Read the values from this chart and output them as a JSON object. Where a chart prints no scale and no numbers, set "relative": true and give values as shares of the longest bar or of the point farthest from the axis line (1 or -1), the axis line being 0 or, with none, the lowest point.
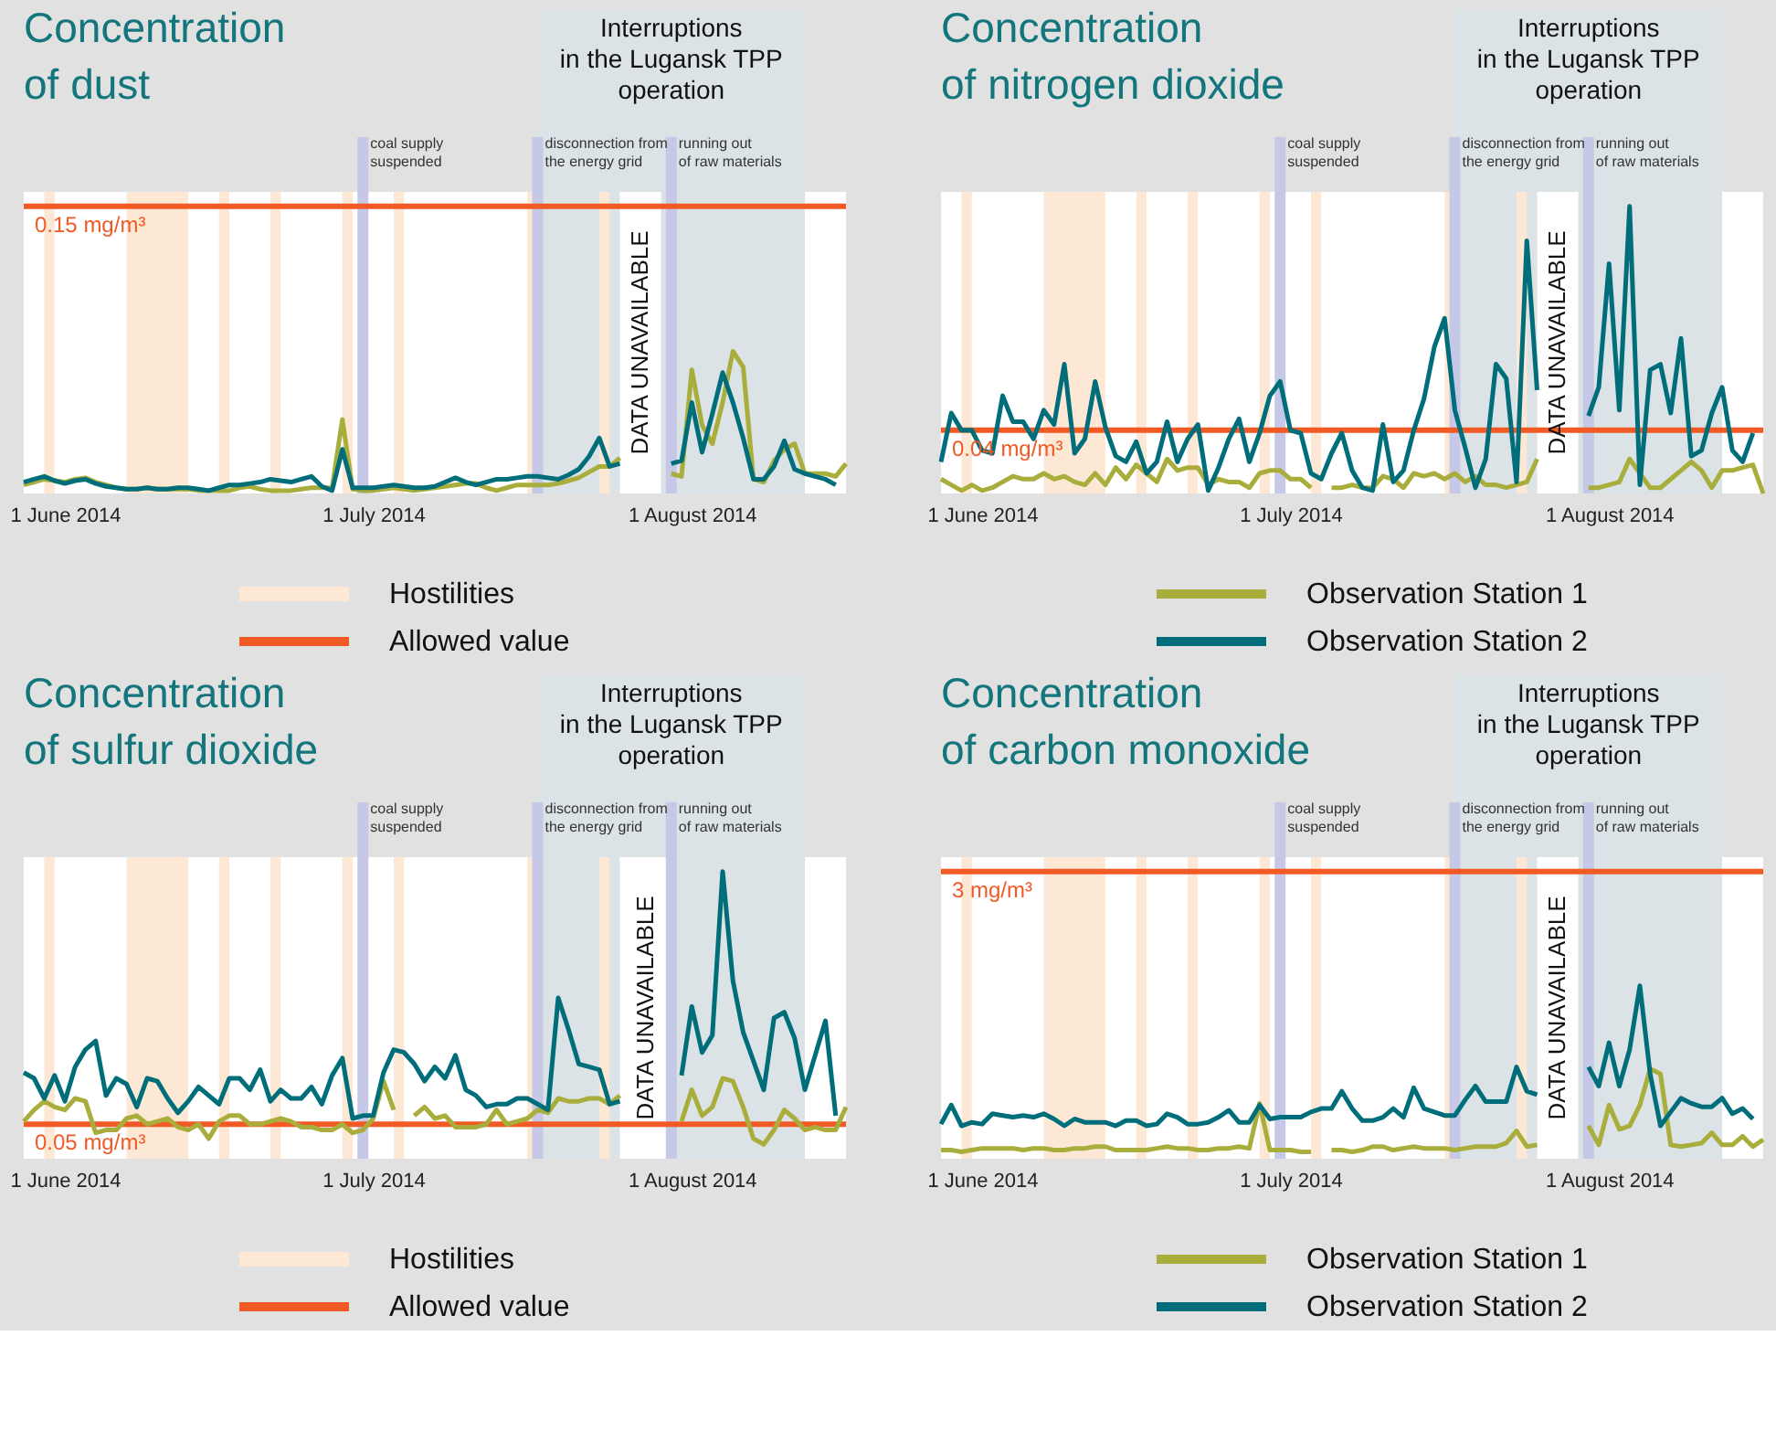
{
  "chart_data": [
    {
      "type": "line",
      "title": "Concentration\nof dust",
      "relative": true,
      "tick_labels": "x",
      "x": [
        "2014-05-28",
        "2014-05-29",
        "2014-05-30",
        "2014-05-31",
        "2014-06-01",
        "2014-06-02",
        "2014-06-03",
        "2014-06-04",
        "2014-06-05",
        "2014-06-06",
        "2014-06-07",
        "2014-06-08",
        "2014-06-09",
        "2014-06-10",
        "2014-06-11",
        "2014-06-12",
        "2014-06-13",
        "2014-06-14",
        "2014-06-15",
        "2014-06-16",
        "2014-06-17",
        "2014-06-18",
        "2014-06-19",
        "2014-06-20",
        "2014-06-21",
        "2014-06-22",
        "2014-06-23",
        "2014-06-24",
        "2014-06-25",
        "2014-06-26",
        "2014-06-27",
        "2014-06-28",
        "2014-06-29",
        "2014-06-30",
        "2014-07-01",
        "2014-07-02",
        "2014-07-03",
        "2014-07-04",
        "2014-07-05",
        "2014-07-06",
        "2014-07-07",
        "2014-07-08",
        "2014-07-09",
        "2014-07-10",
        "2014-07-11",
        "2014-07-12",
        "2014-07-13",
        "2014-07-14",
        "2014-07-15",
        "2014-07-16",
        "2014-07-17",
        "2014-07-18",
        "2014-07-19",
        "2014-07-20",
        "2014-07-21",
        "2014-07-22",
        "2014-07-23",
        "2014-07-24",
        "2014-07-25",
        "2014-07-26",
        "2014-07-27",
        "2014-07-28",
        "2014-07-29",
        "2014-07-30",
        "2014-07-31",
        "2014-08-01",
        "2014-08-02",
        "2014-08-03",
        "2014-08-04",
        "2014-08-05",
        "2014-08-06",
        "2014-08-07",
        "2014-08-08",
        "2014-08-09",
        "2014-08-10",
        "2014-08-11",
        "2014-08-12",
        "2014-08-13",
        "2014-08-14",
        "2014-08-15",
        "2014-08-16"
      ],
      "xlim": [
        "2014-05-28",
        "2014-08-16"
      ],
      "xticks": [
        {
          "value": "2014-06-01",
          "label": "1 June 2014"
        },
        {
          "value": "2014-07-01",
          "label": "1 July 2014"
        },
        {
          "value": "2014-08-01",
          "label": "1 August 2014"
        }
      ],
      "series": [
        {
          "color": "#a9ad3b",
          "values": [
            0.06,
            0.08,
            0.1,
            0.09,
            0.08,
            0.1,
            0.11,
            0.08,
            0.06,
            0.04,
            0.03,
            0.03,
            0.04,
            0.03,
            0.03,
            0.03,
            0.03,
            0.02,
            0.02,
            0.02,
            0.02,
            0.04,
            0.05,
            0.03,
            0.02,
            0.02,
            0.02,
            0.03,
            0.04,
            0.04,
            0.04,
            0.52,
            0.03,
            0.02,
            0.02,
            0.03,
            0.04,
            0.03,
            0.02,
            0.03,
            0.04,
            0.05,
            0.06,
            0.07,
            0.07,
            0.04,
            0.02,
            0.04,
            0.06,
            0.06,
            0.06,
            0.06,
            0.07,
            0.09,
            0.11,
            0.15,
            0.19,
            0.19,
            0.25,
            null,
            null,
            null,
            null,
            0.14,
            0.12,
            0.87,
            0.48,
            0.35,
            0.64,
            1,
            0.89,
            0.1,
            0.08,
            0.23,
            0.31,
            0.35,
            0.14,
            0.14,
            0.14,
            0.12,
            0.21
          ]
        },
        {
          "color": "#006e7a",
          "values": [
            0.08,
            0.1,
            0.12,
            0.09,
            0.07,
            0.09,
            0.1,
            0.07,
            0.05,
            0.04,
            0.03,
            0.03,
            0.04,
            0.03,
            0.03,
            0.04,
            0.04,
            0.03,
            0.02,
            0.04,
            0.06,
            0.06,
            0.07,
            0.08,
            0.1,
            0.09,
            0.08,
            0.1,
            0.12,
            0.05,
            0.02,
            0.31,
            0.04,
            0.04,
            0.04,
            0.05,
            0.06,
            0.05,
            0.04,
            0.04,
            0.05,
            0.08,
            0.11,
            0.08,
            0.06,
            0.08,
            0.1,
            0.1,
            0.11,
            0.12,
            0.12,
            0.11,
            0.1,
            0.13,
            0.17,
            0.26,
            0.39,
            0.19,
            0.21,
            null,
            null,
            null,
            null,
            0.21,
            0.23,
            0.64,
            0.29,
            0.56,
            0.85,
            0.64,
            0.39,
            0.1,
            0.1,
            0.19,
            0.37,
            0.17,
            0.14,
            0.12,
            0.1,
            0.06,
            null
          ]
        }
      ],
      "bands": [
        {
          "axis": "x",
          "from": "2014-07-17",
          "to": "2014-08-12",
          "label": "Interruptions\nin the Lugansk TPP\noperation",
          "color": "#dbe3e6"
        },
        {
          "axis": "x",
          "from": "2014-05-30",
          "to": "2014-05-31",
          "color": "#fde8d6"
        },
        {
          "axis": "x",
          "from": "2014-06-07",
          "to": "2014-06-13",
          "color": "#fde8d6"
        },
        {
          "axis": "x",
          "from": "2014-06-16",
          "to": "2014-06-17",
          "color": "#fde8d6"
        },
        {
          "axis": "x",
          "from": "2014-06-21",
          "to": "2014-06-22",
          "color": "#fde8d6"
        },
        {
          "axis": "x",
          "from": "2014-06-28",
          "to": "2014-06-29",
          "color": "#fde8d6"
        },
        {
          "axis": "x",
          "from": "2014-07-03",
          "to": "2014-07-04",
          "color": "#fde8d6"
        },
        {
          "axis": "x",
          "from": "2014-07-16",
          "to": "2014-07-17",
          "color": "#fde8d6"
        },
        {
          "axis": "x",
          "from": "2014-07-23",
          "to": "2014-07-24",
          "color": "#fde8d6"
        },
        {
          "axis": "x",
          "from": "2014-07-25",
          "to": "2014-07-29",
          "label": "DATA UNAVAILABLE",
          "color": "#ffffff"
        }
      ],
      "ref_lines": [
        {
          "axis": "x",
          "value": "2014-06-30",
          "label": "coal supply\nsuspended",
          "color": "#c5c8e6"
        },
        {
          "axis": "x",
          "value": "2014-07-17",
          "label": "disconnection from\nthe energy grid",
          "color": "#c5c8e6"
        },
        {
          "axis": "x",
          "value": "2014-07-30",
          "label": "running out\nof raw materials",
          "color": "#c5c8e6"
        },
        {
          "axis": "y",
          "value": 2.02,
          "label": "0.15 mg/m³",
          "color": "#f15a24"
        }
      ],
      "annotations": [
        "Hostilities",
        "Allowed value"
      ]
    },
    {
      "type": "line",
      "title": "Concentration\nof nitrogen dioxide",
      "relative": true,
      "tick_labels": "x",
      "legend": "bottom",
      "x": [
        "2014-05-28",
        "2014-05-29",
        "2014-05-30",
        "2014-05-31",
        "2014-06-01",
        "2014-06-02",
        "2014-06-03",
        "2014-06-04",
        "2014-06-05",
        "2014-06-06",
        "2014-06-07",
        "2014-06-08",
        "2014-06-09",
        "2014-06-10",
        "2014-06-11",
        "2014-06-12",
        "2014-06-13",
        "2014-06-14",
        "2014-06-15",
        "2014-06-16",
        "2014-06-17",
        "2014-06-18",
        "2014-06-19",
        "2014-06-20",
        "2014-06-21",
        "2014-06-22",
        "2014-06-23",
        "2014-06-24",
        "2014-06-25",
        "2014-06-26",
        "2014-06-27",
        "2014-06-28",
        "2014-06-29",
        "2014-06-30",
        "2014-07-01",
        "2014-07-02",
        "2014-07-03",
        "2014-07-04",
        "2014-07-05",
        "2014-07-06",
        "2014-07-07",
        "2014-07-08",
        "2014-07-09",
        "2014-07-10",
        "2014-07-11",
        "2014-07-12",
        "2014-07-13",
        "2014-07-14",
        "2014-07-15",
        "2014-07-16",
        "2014-07-17",
        "2014-07-18",
        "2014-07-19",
        "2014-07-20",
        "2014-07-21",
        "2014-07-22",
        "2014-07-23",
        "2014-07-24",
        "2014-07-25",
        "2014-07-26",
        "2014-07-27",
        "2014-07-28",
        "2014-07-29",
        "2014-07-30",
        "2014-07-31",
        "2014-08-01",
        "2014-08-02",
        "2014-08-03",
        "2014-08-04",
        "2014-08-05",
        "2014-08-06",
        "2014-08-07",
        "2014-08-08",
        "2014-08-09",
        "2014-08-10",
        "2014-08-11",
        "2014-08-12",
        "2014-08-13",
        "2014-08-14",
        "2014-08-15",
        "2014-08-16"
      ],
      "xlim": [
        "2014-05-28",
        "2014-08-16"
      ],
      "xticks": [
        {
          "value": "2014-06-01",
          "label": "1 June 2014"
        },
        {
          "value": "2014-07-01",
          "label": "1 July 2014"
        },
        {
          "value": "2014-08-01",
          "label": "1 August 2014"
        }
      ],
      "series": [
        {
          "name": "Observation Station 1",
          "color": "#a9ad3b",
          "values": [
            0.05,
            0.03,
            0.01,
            0.03,
            0.01,
            0.02,
            0.04,
            0.06,
            0.05,
            0.05,
            0.07,
            0.05,
            0.06,
            0.04,
            0.03,
            0.07,
            0.03,
            0.09,
            0.05,
            0.1,
            0.07,
            0.04,
            0.12,
            0.08,
            0.09,
            0.09,
            0.03,
            0.05,
            0.04,
            0.04,
            0.02,
            0.07,
            0.08,
            0.08,
            0.05,
            0.05,
            0.02,
            null,
            0.02,
            0.02,
            0.03,
            0.02,
            0.02,
            0.06,
            0.05,
            0.02,
            0.07,
            0.06,
            0.07,
            0.05,
            0.07,
            0.04,
            0.06,
            0.03,
            0.03,
            0.02,
            0.03,
            0.04,
            0.12,
            null,
            null,
            null,
            null,
            0.02,
            0.02,
            0.03,
            0.04,
            0.12,
            0.07,
            0.02,
            0.02,
            0.05,
            0.08,
            0.11,
            0.08,
            0.02,
            0.08,
            0.08,
            0.09,
            0.1,
            0
          ]
        },
        {
          "name": "Observation Station 2",
          "color": "#006e7a",
          "values": [
            0.11,
            0.28,
            0.22,
            0.22,
            0.15,
            0.14,
            0.34,
            0.25,
            0.25,
            0.19,
            0.29,
            0.24,
            0.45,
            0.14,
            0.19,
            0.39,
            0.23,
            0.13,
            0.11,
            0.18,
            0.07,
            0.11,
            0.25,
            0.11,
            0.19,
            0.24,
            0.01,
            0.09,
            0.19,
            0.26,
            0.11,
            0.21,
            0.34,
            0.39,
            0.22,
            0.21,
            0.07,
            0.05,
            0.14,
            0.21,
            0.08,
            0.02,
            0.01,
            0.24,
            0.04,
            0.08,
            0.22,
            0.33,
            0.51,
            0.61,
            0.29,
            0.16,
            0.02,
            0.12,
            0.45,
            0.4,
            0.04,
            0.88,
            0.36,
            null,
            null,
            null,
            null,
            0.27,
            0.37,
            0.8,
            0.29,
            1,
            0.03,
            0.43,
            0.45,
            0.28,
            0.54,
            0.13,
            0.15,
            0.28,
            0.37,
            0.15,
            0.11,
            0.21,
            null
          ]
        }
      ],
      "bands": [
        {
          "axis": "x",
          "from": "2014-07-17",
          "to": "2014-08-12",
          "label": "Interruptions\nin the Lugansk TPP\noperation",
          "color": "#dbe3e6"
        },
        {
          "axis": "x",
          "from": "2014-05-30",
          "to": "2014-05-31",
          "color": "#fde8d6"
        },
        {
          "axis": "x",
          "from": "2014-06-07",
          "to": "2014-06-13",
          "color": "#fde8d6"
        },
        {
          "axis": "x",
          "from": "2014-06-16",
          "to": "2014-06-17",
          "color": "#fde8d6"
        },
        {
          "axis": "x",
          "from": "2014-06-21",
          "to": "2014-06-22",
          "color": "#fde8d6"
        },
        {
          "axis": "x",
          "from": "2014-06-28",
          "to": "2014-06-29",
          "color": "#fde8d6"
        },
        {
          "axis": "x",
          "from": "2014-07-03",
          "to": "2014-07-04",
          "color": "#fde8d6"
        },
        {
          "axis": "x",
          "from": "2014-07-16",
          "to": "2014-07-17",
          "color": "#fde8d6"
        },
        {
          "axis": "x",
          "from": "2014-07-23",
          "to": "2014-07-24",
          "color": "#fde8d6"
        },
        {
          "axis": "x",
          "from": "2014-07-25",
          "to": "2014-07-29",
          "label": "DATA UNAVAILABLE",
          "color": "#ffffff"
        }
      ],
      "ref_lines": [
        {
          "axis": "x",
          "value": "2014-06-30",
          "label": "coal supply\nsuspended",
          "color": "#c5c8e6"
        },
        {
          "axis": "x",
          "value": "2014-07-17",
          "label": "disconnection from\nthe energy grid",
          "color": "#c5c8e6"
        },
        {
          "axis": "x",
          "value": "2014-07-30",
          "label": "running out\nof raw materials",
          "color": "#c5c8e6"
        },
        {
          "axis": "y",
          "value": 0.22,
          "label": "0.04 mg/m³",
          "color": "#f15a24"
        }
      ]
    },
    {
      "type": "line",
      "title": "Concentration\nof sulfur dioxide",
      "relative": true,
      "tick_labels": "x",
      "x": [
        "2014-05-28",
        "2014-05-29",
        "2014-05-30",
        "2014-05-31",
        "2014-06-01",
        "2014-06-02",
        "2014-06-03",
        "2014-06-04",
        "2014-06-05",
        "2014-06-06",
        "2014-06-07",
        "2014-06-08",
        "2014-06-09",
        "2014-06-10",
        "2014-06-11",
        "2014-06-12",
        "2014-06-13",
        "2014-06-14",
        "2014-06-15",
        "2014-06-16",
        "2014-06-17",
        "2014-06-18",
        "2014-06-19",
        "2014-06-20",
        "2014-06-21",
        "2014-06-22",
        "2014-06-23",
        "2014-06-24",
        "2014-06-25",
        "2014-06-26",
        "2014-06-27",
        "2014-06-28",
        "2014-06-29",
        "2014-06-30",
        "2014-07-01",
        "2014-07-02",
        "2014-07-03",
        "2014-07-04",
        "2014-07-05",
        "2014-07-06",
        "2014-07-07",
        "2014-07-08",
        "2014-07-09",
        "2014-07-10",
        "2014-07-11",
        "2014-07-12",
        "2014-07-13",
        "2014-07-14",
        "2014-07-15",
        "2014-07-16",
        "2014-07-17",
        "2014-07-18",
        "2014-07-19",
        "2014-07-20",
        "2014-07-21",
        "2014-07-22",
        "2014-07-23",
        "2014-07-24",
        "2014-07-25",
        "2014-07-26",
        "2014-07-27",
        "2014-07-28",
        "2014-07-29",
        "2014-07-30",
        "2014-07-31",
        "2014-08-01",
        "2014-08-02",
        "2014-08-03",
        "2014-08-04",
        "2014-08-05",
        "2014-08-06",
        "2014-08-07",
        "2014-08-08",
        "2014-08-09",
        "2014-08-10",
        "2014-08-11",
        "2014-08-12",
        "2014-08-13",
        "2014-08-14",
        "2014-08-15",
        "2014-08-16"
      ],
      "xlim": [
        "2014-05-28",
        "2014-08-16"
      ],
      "xticks": [
        {
          "value": "2014-06-01",
          "label": "1 June 2014"
        },
        {
          "value": "2014-07-01",
          "label": "1 July 2014"
        },
        {
          "value": "2014-08-01",
          "label": "1 August 2014"
        }
      ],
      "series": [
        {
          "color": "#a9ad3b",
          "values": [
            0.13,
            0.17,
            0.2,
            0.18,
            0.17,
            0.21,
            0.2,
            0.09,
            0.1,
            0.1,
            0.14,
            0.15,
            0.12,
            0.13,
            0.14,
            0.11,
            0.1,
            0.12,
            0.07,
            0.13,
            0.15,
            0.15,
            0.12,
            0.12,
            0.13,
            0.14,
            0.13,
            0.11,
            0.11,
            0.1,
            0.1,
            0.12,
            0.09,
            0.1,
            0.14,
            0.27,
            0.17,
            null,
            0.15,
            0.18,
            0.14,
            0.15,
            0.11,
            0.11,
            0.11,
            0.12,
            0.17,
            0.12,
            0.13,
            0.14,
            0.17,
            0.16,
            0.21,
            0.2,
            0.2,
            0.21,
            0.21,
            0.19,
            0.22,
            null,
            null,
            null,
            null,
            null,
            0.13,
            0.24,
            0.15,
            0.18,
            0.28,
            0.27,
            0.18,
            0.07,
            0.05,
            0.1,
            0.17,
            0.14,
            0.1,
            0.11,
            0.1,
            0.1,
            0.18
          ]
        },
        {
          "color": "#006e7a",
          "values": [
            0.3,
            0.28,
            0.21,
            0.29,
            0.2,
            0.32,
            0.38,
            0.41,
            0.22,
            0.28,
            0.26,
            0.18,
            0.28,
            0.27,
            0.21,
            0.16,
            0.2,
            0.25,
            0.22,
            0.19,
            0.28,
            0.28,
            0.24,
            0.31,
            0.2,
            0.24,
            0.21,
            0.21,
            0.25,
            0.19,
            0.29,
            0.35,
            0.14,
            0.15,
            0.15,
            0.3,
            0.38,
            0.37,
            0.33,
            0.27,
            0.32,
            0.28,
            0.36,
            0.24,
            0.22,
            0.18,
            0.19,
            0.19,
            0.21,
            0.21,
            0.19,
            0.17,
            0.56,
            0.45,
            0.33,
            0.32,
            0.31,
            0.19,
            0.2,
            null,
            null,
            null,
            null,
            null,
            0.29,
            0.53,
            0.37,
            0.43,
            1,
            0.62,
            0.44,
            0.34,
            0.24,
            0.49,
            0.51,
            0.42,
            0.24,
            0.36,
            0.48,
            0.15,
            null
          ]
        }
      ],
      "bands": [
        {
          "axis": "x",
          "from": "2014-07-17",
          "to": "2014-08-12",
          "label": "Interruptions\nin the Lugansk TPP\noperation",
          "color": "#dbe3e6"
        },
        {
          "axis": "x",
          "from": "2014-05-30",
          "to": "2014-05-31",
          "color": "#fde8d6"
        },
        {
          "axis": "x",
          "from": "2014-06-07",
          "to": "2014-06-13",
          "color": "#fde8d6"
        },
        {
          "axis": "x",
          "from": "2014-06-16",
          "to": "2014-06-17",
          "color": "#fde8d6"
        },
        {
          "axis": "x",
          "from": "2014-06-21",
          "to": "2014-06-22",
          "color": "#fde8d6"
        },
        {
          "axis": "x",
          "from": "2014-06-28",
          "to": "2014-06-29",
          "color": "#fde8d6"
        },
        {
          "axis": "x",
          "from": "2014-07-03",
          "to": "2014-07-04",
          "color": "#fde8d6"
        },
        {
          "axis": "x",
          "from": "2014-07-16",
          "to": "2014-07-17",
          "color": "#fde8d6"
        },
        {
          "axis": "x",
          "from": "2014-07-23",
          "to": "2014-07-24",
          "color": "#fde8d6"
        },
        {
          "axis": "x",
          "from": "2014-07-25",
          "to": "2014-07-30",
          "label": "DATA UNAVAILABLE",
          "color": "#ffffff"
        }
      ],
      "ref_lines": [
        {
          "axis": "x",
          "value": "2014-06-30",
          "label": "coal supply\nsuspended",
          "color": "#c5c8e6"
        },
        {
          "axis": "x",
          "value": "2014-07-17",
          "label": "disconnection from\nthe energy grid",
          "color": "#c5c8e6"
        },
        {
          "axis": "x",
          "value": "2014-07-30",
          "label": "running out\nof raw materials",
          "color": "#c5c8e6"
        },
        {
          "axis": "y",
          "value": 0.12,
          "label": "0.05 mg/m³",
          "color": "#f15a24"
        }
      ],
      "annotations": [
        "Hostilities",
        "Allowed value"
      ]
    },
    {
      "type": "line",
      "title": "Concentration\nof carbon monoxide",
      "relative": true,
      "tick_labels": "x",
      "legend": "bottom",
      "x": [
        "2014-05-28",
        "2014-05-29",
        "2014-05-30",
        "2014-05-31",
        "2014-06-01",
        "2014-06-02",
        "2014-06-03",
        "2014-06-04",
        "2014-06-05",
        "2014-06-06",
        "2014-06-07",
        "2014-06-08",
        "2014-06-09",
        "2014-06-10",
        "2014-06-11",
        "2014-06-12",
        "2014-06-13",
        "2014-06-14",
        "2014-06-15",
        "2014-06-16",
        "2014-06-17",
        "2014-06-18",
        "2014-06-19",
        "2014-06-20",
        "2014-06-21",
        "2014-06-22",
        "2014-06-23",
        "2014-06-24",
        "2014-06-25",
        "2014-06-26",
        "2014-06-27",
        "2014-06-28",
        "2014-06-29",
        "2014-06-30",
        "2014-07-01",
        "2014-07-02",
        "2014-07-03",
        "2014-07-04",
        "2014-07-05",
        "2014-07-06",
        "2014-07-07",
        "2014-07-08",
        "2014-07-09",
        "2014-07-10",
        "2014-07-11",
        "2014-07-12",
        "2014-07-13",
        "2014-07-14",
        "2014-07-15",
        "2014-07-16",
        "2014-07-17",
        "2014-07-18",
        "2014-07-19",
        "2014-07-20",
        "2014-07-21",
        "2014-07-22",
        "2014-07-23",
        "2014-07-24",
        "2014-07-25",
        "2014-07-26",
        "2014-07-27",
        "2014-07-28",
        "2014-07-29",
        "2014-07-30",
        "2014-07-31",
        "2014-08-01",
        "2014-08-02",
        "2014-08-03",
        "2014-08-04",
        "2014-08-05",
        "2014-08-06",
        "2014-08-07",
        "2014-08-08",
        "2014-08-09",
        "2014-08-10",
        "2014-08-11",
        "2014-08-12",
        "2014-08-13",
        "2014-08-14",
        "2014-08-15",
        "2014-08-16"
      ],
      "xlim": [
        "2014-05-28",
        "2014-08-16"
      ],
      "xticks": [
        {
          "value": "2014-06-01",
          "label": "1 June 2014"
        },
        {
          "value": "2014-07-01",
          "label": "1 July 2014"
        },
        {
          "value": "2014-08-01",
          "label": "1 August 2014"
        }
      ],
      "series": [
        {
          "name": "Observation Station 1",
          "color": "#a9ad3b",
          "values": [
            0.05,
            0.05,
            0.04,
            0.05,
            0.06,
            0.06,
            0.06,
            0.06,
            0.05,
            0.06,
            0.06,
            0.05,
            0.05,
            0.06,
            0.06,
            0.07,
            0.07,
            0.05,
            0.05,
            0.05,
            0.05,
            0.06,
            0.07,
            0.06,
            0.06,
            0.05,
            0.05,
            0.06,
            0.06,
            0.07,
            0.06,
            0.32,
            0.05,
            0.05,
            0.05,
            0.04,
            0.04,
            null,
            0.05,
            0.05,
            0.04,
            0.05,
            0.07,
            0.07,
            0.05,
            0.06,
            0.07,
            0.06,
            0.06,
            0.06,
            0.05,
            0.06,
            0.07,
            0.07,
            0.07,
            0.09,
            0.16,
            0.07,
            0.08,
            null,
            null,
            null,
            null,
            0.19,
            0.08,
            0.31,
            0.17,
            0.19,
            0.31,
            0.52,
            0.49,
            0.08,
            0.07,
            0.08,
            0.09,
            0.15,
            0.08,
            0.08,
            0.13,
            0.07,
            0.11
          ]
        },
        {
          "name": "Observation Station 2",
          "color": "#006e7a",
          "values": [
            0.2,
            0.31,
            0.19,
            0.21,
            0.2,
            0.26,
            0.25,
            0.24,
            0.25,
            0.24,
            0.26,
            0.23,
            0.19,
            0.23,
            0.21,
            0.21,
            0.21,
            0.19,
            0.22,
            0.22,
            0.19,
            0.2,
            0.26,
            0.24,
            0.2,
            0.2,
            0.21,
            0.24,
            0.28,
            0.21,
            0.21,
            0.31,
            0.23,
            0.24,
            0.24,
            0.24,
            0.27,
            0.29,
            0.29,
            0.39,
            0.29,
            0.22,
            0.22,
            0.24,
            0.29,
            0.24,
            0.41,
            0.29,
            0.27,
            0.25,
            0.25,
            0.34,
            0.42,
            0.33,
            0.33,
            0.33,
            0.53,
            0.39,
            0.37,
            null,
            null,
            null,
            null,
            0.53,
            0.42,
            0.67,
            0.42,
            0.63,
            1,
            0.49,
            0.19,
            0.27,
            0.35,
            0.32,
            0.3,
            0.3,
            0.35,
            0.26,
            0.29,
            0.23,
            null
          ]
        }
      ],
      "bands": [
        {
          "axis": "x",
          "from": "2014-07-17",
          "to": "2014-08-12",
          "label": "Interruptions\nin the Lugansk TPP\noperation",
          "color": "#dbe3e6"
        },
        {
          "axis": "x",
          "from": "2014-05-30",
          "to": "2014-05-31",
          "color": "#fde8d6"
        },
        {
          "axis": "x",
          "from": "2014-06-07",
          "to": "2014-06-13",
          "color": "#fde8d6"
        },
        {
          "axis": "x",
          "from": "2014-06-16",
          "to": "2014-06-17",
          "color": "#fde8d6"
        },
        {
          "axis": "x",
          "from": "2014-06-21",
          "to": "2014-06-22",
          "color": "#fde8d6"
        },
        {
          "axis": "x",
          "from": "2014-06-28",
          "to": "2014-06-29",
          "color": "#fde8d6"
        },
        {
          "axis": "x",
          "from": "2014-07-03",
          "to": "2014-07-04",
          "color": "#fde8d6"
        },
        {
          "axis": "x",
          "from": "2014-07-16",
          "to": "2014-07-17",
          "color": "#fde8d6"
        },
        {
          "axis": "x",
          "from": "2014-07-23",
          "to": "2014-07-24",
          "color": "#fde8d6"
        },
        {
          "axis": "x",
          "from": "2014-07-25",
          "to": "2014-07-29",
          "label": "DATA UNAVAILABLE",
          "color": "#ffffff"
        }
      ],
      "ref_lines": [
        {
          "axis": "x",
          "value": "2014-06-30",
          "label": "coal supply\nsuspended",
          "color": "#c5c8e6"
        },
        {
          "axis": "x",
          "value": "2014-07-17",
          "label": "disconnection from\nthe energy grid",
          "color": "#c5c8e6"
        },
        {
          "axis": "x",
          "value": "2014-07-30",
          "label": "running out\nof raw materials",
          "color": "#c5c8e6"
        },
        {
          "axis": "y",
          "value": 1.66,
          "label": "3 mg/m³",
          "color": "#f15a24"
        }
      ]
    }
  ]
}
